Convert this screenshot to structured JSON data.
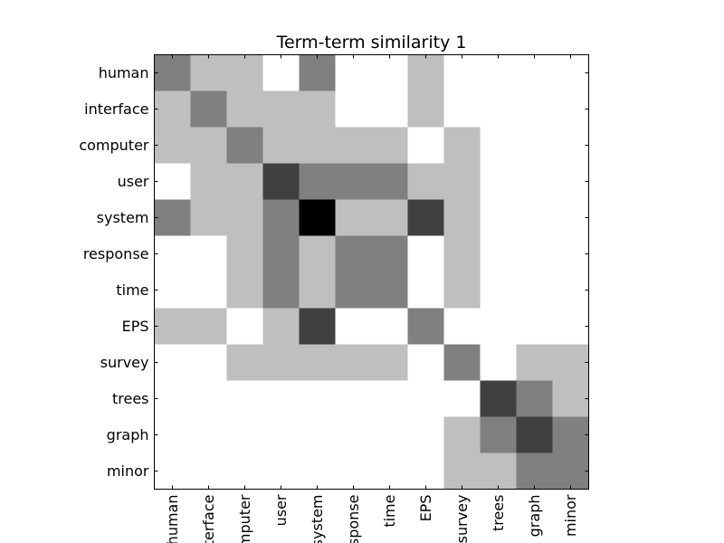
{
  "chart_data": {
    "type": "heatmap",
    "title": "Term-term similarity 1",
    "xlabel": "",
    "ylabel": "",
    "colormap": "gray_r",
    "row_labels": [
      "human",
      "interface",
      "computer",
      "user",
      "system",
      "response",
      "time",
      "EPS",
      "survey",
      "trees",
      "graph",
      "minor"
    ],
    "col_labels": [
      "human",
      "interface",
      "computer",
      "user",
      "system",
      "response",
      "time",
      "EPS",
      "survey",
      "trees",
      "graph",
      "minor"
    ],
    "vmin": 0,
    "vmax": 4,
    "values": [
      [
        2,
        1,
        1,
        0,
        2,
        0,
        0,
        1,
        0,
        0,
        0,
        0
      ],
      [
        1,
        2,
        1,
        1,
        1,
        0,
        0,
        1,
        0,
        0,
        0,
        0
      ],
      [
        1,
        1,
        2,
        1,
        1,
        1,
        1,
        0,
        1,
        0,
        0,
        0
      ],
      [
        0,
        1,
        1,
        3,
        2,
        2,
        2,
        1,
        1,
        0,
        0,
        0
      ],
      [
        2,
        1,
        1,
        2,
        4,
        1,
        1,
        3,
        1,
        0,
        0,
        0
      ],
      [
        0,
        0,
        1,
        2,
        1,
        2,
        2,
        0,
        1,
        0,
        0,
        0
      ],
      [
        0,
        0,
        1,
        2,
        1,
        2,
        2,
        0,
        1,
        0,
        0,
        0
      ],
      [
        1,
        1,
        0,
        1,
        3,
        0,
        0,
        2,
        0,
        0,
        0,
        0
      ],
      [
        0,
        0,
        1,
        1,
        1,
        1,
        1,
        0,
        2,
        0,
        1,
        1
      ],
      [
        0,
        0,
        0,
        0,
        0,
        0,
        0,
        0,
        0,
        3,
        2,
        1
      ],
      [
        0,
        0,
        0,
        0,
        0,
        0,
        0,
        0,
        1,
        2,
        3,
        2
      ],
      [
        0,
        0,
        0,
        0,
        0,
        0,
        0,
        0,
        1,
        1,
        2,
        2
      ]
    ]
  }
}
